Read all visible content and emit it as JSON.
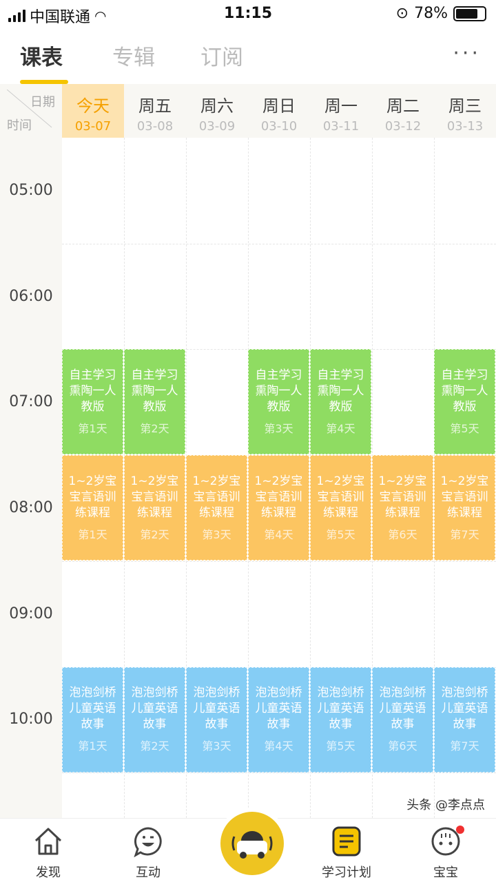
{
  "status": {
    "carrier": "中国联通",
    "time": "11:15",
    "battery": "78%",
    "battery_level": 0.78
  },
  "tabs": [
    {
      "label": "课表",
      "active": true
    },
    {
      "label": "专辑"
    },
    {
      "label": "订阅"
    }
  ],
  "more_label": "···",
  "corner": {
    "date": "日期",
    "time": "时间"
  },
  "days": [
    {
      "w": "今天",
      "d": "03-07"
    },
    {
      "w": "周五",
      "d": "03-08"
    },
    {
      "w": "周六",
      "d": "03-09"
    },
    {
      "w": "周日",
      "d": "03-10"
    },
    {
      "w": "周一",
      "d": "03-11"
    },
    {
      "w": "周二",
      "d": "03-12"
    },
    {
      "w": "周三",
      "d": "03-13"
    }
  ],
  "hours": [
    "05:00",
    "06:00",
    "07:00",
    "08:00",
    "09:00",
    "10:00"
  ],
  "courses": [
    {
      "title": "自主学习熏陶一人教版",
      "color": "#8fdc62",
      "cls": "green",
      "slot": 2,
      "entries": [
        {
          "col": 0,
          "day": "第1天"
        },
        {
          "col": 1,
          "day": "第2天"
        },
        {
          "col": 3,
          "day": "第3天"
        },
        {
          "col": 4,
          "day": "第4天"
        },
        {
          "col": 6,
          "day": "第5天"
        }
      ]
    },
    {
      "title": "1~2岁宝宝言语训练课程",
      "color": "#fcc561",
      "cls": "orange",
      "slot": 3,
      "entries": [
        {
          "col": 0,
          "day": "第1天"
        },
        {
          "col": 1,
          "day": "第2天"
        },
        {
          "col": 2,
          "day": "第3天"
        },
        {
          "col": 3,
          "day": "第4天"
        },
        {
          "col": 4,
          "day": "第5天"
        },
        {
          "col": 5,
          "day": "第6天"
        },
        {
          "col": 6,
          "day": "第7天"
        }
      ]
    },
    {
      "title": "泡泡剑桥儿童英语故事",
      "color": "#85cdf5",
      "cls": "blue",
      "slot": 5,
      "entries": [
        {
          "col": 0,
          "day": "第1天"
        },
        {
          "col": 1,
          "day": "第2天"
        },
        {
          "col": 2,
          "day": "第3天"
        },
        {
          "col": 3,
          "day": "第4天"
        },
        {
          "col": 4,
          "day": "第5天"
        },
        {
          "col": 5,
          "day": "第6天"
        },
        {
          "col": 6,
          "day": "第7天"
        }
      ]
    }
  ],
  "nav": {
    "discover": "发现",
    "interact": "互动",
    "plan": "学习计划",
    "baby": "宝宝"
  },
  "watermark": "头条 @李点点",
  "accent": "#f5c400"
}
